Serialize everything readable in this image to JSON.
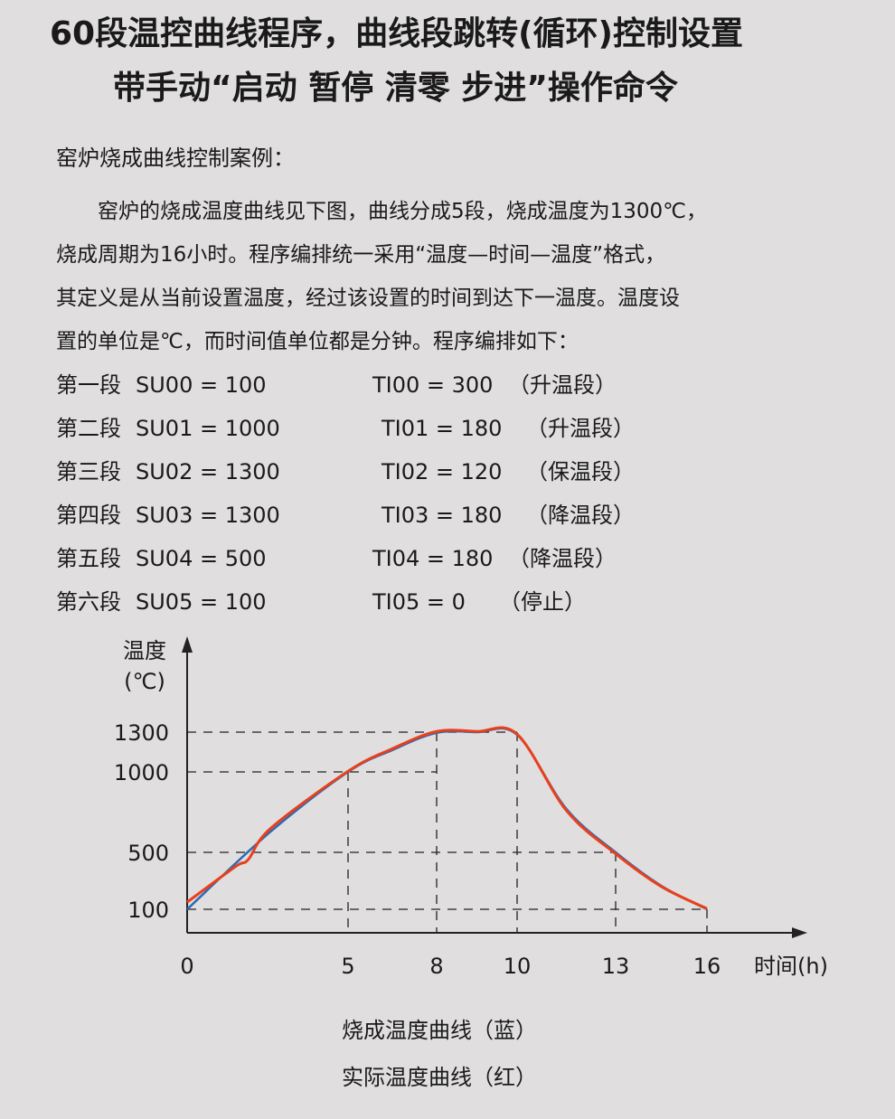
{
  "title_line1": "60段温控曲线程序，曲线段跳转(循环)控制设置",
  "title_line2": "带手动“启动  暂停  清零  步进”操作命令",
  "section_title": "窑炉烧成曲线控制案例：",
  "paragraph": [
    "　　窑炉的烧成温度曲线见下图，曲线分成5段，烧成温度为1300℃，",
    "烧成周期为16小时。程序编排统一采用“温度—时间—温度”格式，",
    "其定义是从当前设置温度，经过该设置的时间到达下一温度。温度设",
    "置的单位是℃，而时间值单位都是分钟。程序编排如下："
  ],
  "program": [
    {
      "seg": "第一段",
      "su": "SU00 = 100",
      "ti": "TI00 = 300",
      "note": "（升温段）"
    },
    {
      "seg": "第二段",
      "su": "SU01 = 1000",
      "ti": "TI01 = 180",
      "note": "（升温段）"
    },
    {
      "seg": "第三段",
      "su": "SU02 = 1300",
      "ti": "TI02 = 120",
      "note": "（保温段）"
    },
    {
      "seg": "第四段",
      "su": "SU03 = 1300",
      "ti": "TI03 = 180",
      "note": "（降温段）"
    },
    {
      "seg": "第五段",
      "su": "SU04 = 500",
      "ti": "TI04 = 180",
      "note": "（降温段）"
    },
    {
      "seg": "第六段",
      "su": "SU05 = 100",
      "ti": "TI05 = 0",
      "note": "（停止）"
    }
  ],
  "chart_data": {
    "type": "line",
    "ylabel": "温度",
    "yunit": "(℃)",
    "xlabel": "时间(h)",
    "x_ticks": [
      0,
      5,
      8,
      10,
      13,
      16
    ],
    "y_ticks": [
      100,
      500,
      1000,
      1300
    ],
    "grid": "dashed reference lines at ticks",
    "series": [
      {
        "name": "烧成温度曲线（蓝）",
        "color": "#2a6ab8",
        "points": [
          [
            0,
            100
          ],
          [
            2.6,
            630
          ],
          [
            5,
            1000
          ],
          [
            6.5,
            1165
          ],
          [
            8,
            1295
          ],
          [
            9,
            1300
          ],
          [
            10,
            1280
          ],
          [
            11.5,
            770
          ],
          [
            13,
            500
          ],
          [
            14.5,
            265
          ],
          [
            16,
            100
          ]
        ]
      },
      {
        "name": "实际温度曲线（红）",
        "color": "#e8401c",
        "points": [
          [
            0,
            150
          ],
          [
            1.5,
            400
          ],
          [
            1.9,
            450
          ],
          [
            2.6,
            650
          ],
          [
            5,
            1005
          ],
          [
            6.5,
            1175
          ],
          [
            8,
            1305
          ],
          [
            9,
            1305
          ],
          [
            10,
            1285
          ],
          [
            11.5,
            760
          ],
          [
            13,
            490
          ],
          [
            14.5,
            260
          ],
          [
            16,
            105
          ]
        ]
      }
    ],
    "legend": [
      "烧成温度曲线（蓝）",
      "实际温度曲线（红）"
    ],
    "legend_placement": "bottom-center"
  }
}
